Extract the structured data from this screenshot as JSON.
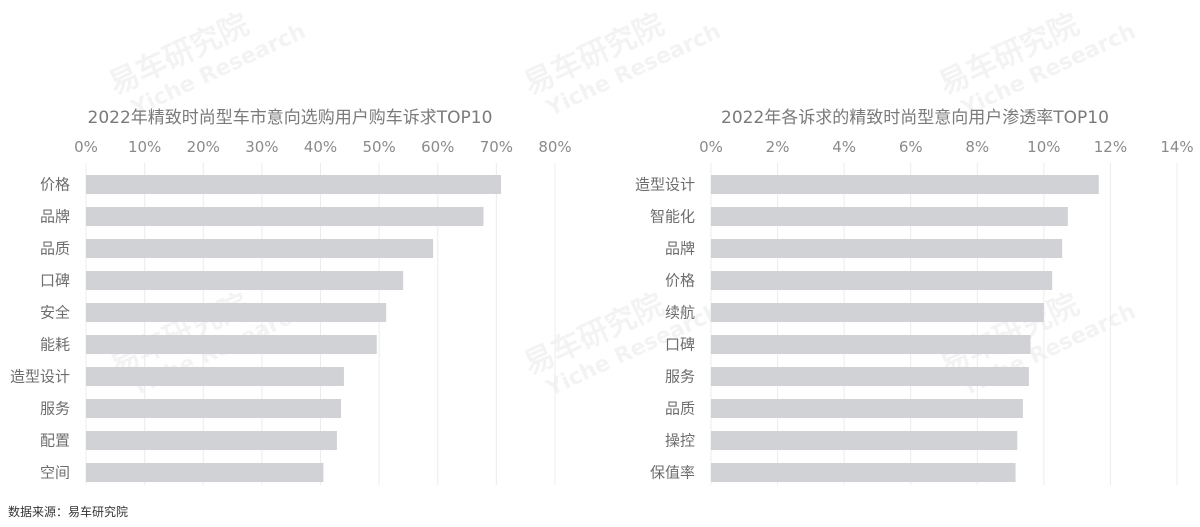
{
  "chart_data": [
    {
      "type": "bar",
      "orientation": "horizontal",
      "title": "2022年精致时尚型车市意向选购用户购车诉求TOP10",
      "categories": [
        "价格",
        "品牌",
        "品质",
        "口碑",
        "安全",
        "能耗",
        "造型设计",
        "服务",
        "配置",
        "空间"
      ],
      "values": [
        70.8,
        67.8,
        59.2,
        54.1,
        51.2,
        49.6,
        44.0,
        43.5,
        42.8,
        40.5
      ],
      "ticks": [
        "0%",
        "10%",
        "20%",
        "30%",
        "40%",
        "50%",
        "60%",
        "70%",
        "80%"
      ],
      "xlim": [
        0,
        80
      ],
      "unit": "%",
      "grid": true,
      "color": "#d0d2d6"
    },
    {
      "type": "bar",
      "orientation": "horizontal",
      "title": "2022年各诉求的精致时尚型意向用户渗透率TOP10",
      "categories": [
        "造型设计",
        "智能化",
        "品牌",
        "价格",
        "续航",
        "口碑",
        "服务",
        "品质",
        "操控",
        "保值率"
      ],
      "values": [
        11.65,
        10.72,
        10.55,
        10.25,
        10.0,
        9.6,
        9.55,
        9.37,
        9.2,
        9.15
      ],
      "ticks": [
        "0%",
        "2%",
        "4%",
        "6%",
        "8%",
        "10%",
        "12%",
        "14%"
      ],
      "xlim": [
        0,
        14
      ],
      "unit": "%",
      "grid": true,
      "color": "#d0d2d6"
    }
  ],
  "watermark": {
    "main": "易车研究院",
    "sub": "Yiche Research"
  },
  "source": "数据来源：易车研究院"
}
